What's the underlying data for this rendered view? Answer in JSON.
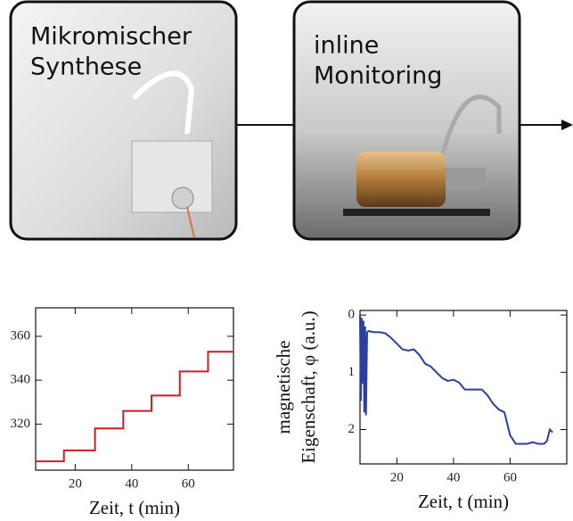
{
  "boxes": [
    {
      "label_lines": [
        "Mikromischer",
        "Synthese"
      ]
    },
    {
      "label_lines": [
        "inline",
        "Monitoring"
      ]
    }
  ],
  "chart_data": [
    {
      "type": "line",
      "x": [
        6,
        16,
        16,
        27,
        27,
        37,
        37,
        47,
        47,
        57,
        57,
        67,
        67,
        76
      ],
      "series": [
        {
          "color": "#cc1f1f",
          "values": [
            303,
            303,
            308,
            308,
            318,
            318,
            326,
            326,
            333,
            333,
            344,
            344,
            353,
            353
          ]
        }
      ],
      "xlim": [
        6,
        76
      ],
      "ylim": [
        299,
        373
      ],
      "xticks": [
        20,
        40,
        60
      ],
      "yticks": [
        320,
        340,
        360
      ],
      "xlabel": "Zeit, t (min)",
      "y_inverted": false
    },
    {
      "type": "line",
      "x": [
        7,
        7.3,
        7.6,
        7.9,
        8.2,
        8.5,
        8.8,
        9.1,
        9.5,
        10,
        12,
        14,
        16,
        18,
        20,
        22,
        24,
        26,
        28,
        30,
        32,
        34,
        36,
        38,
        40,
        42,
        44,
        46,
        48,
        50,
        52,
        54,
        56,
        58,
        60,
        62,
        64,
        66,
        68,
        70,
        72,
        73,
        74,
        75
      ],
      "series": [
        {
          "color": "#2a3fa0",
          "values": [
            0,
            1.5,
            0.05,
            1.2,
            0.1,
            1.7,
            0.2,
            1.75,
            0.3,
            0.28,
            0.3,
            0.3,
            0.32,
            0.4,
            0.5,
            0.6,
            0.62,
            0.6,
            0.7,
            0.85,
            0.9,
            1.0,
            1.1,
            1.15,
            1.13,
            1.18,
            1.3,
            1.3,
            1.3,
            1.3,
            1.4,
            1.55,
            1.65,
            1.7,
            2.1,
            2.25,
            2.25,
            2.25,
            2.22,
            2.25,
            2.25,
            2.2,
            2.0,
            2.05
          ]
        }
      ],
      "xlim": [
        7,
        80
      ],
      "ylim": [
        -0.08,
        2.6
      ],
      "xticks": [
        20,
        40,
        60
      ],
      "yticks": [
        0,
        1,
        2
      ],
      "xlabel": "Zeit, t (min)",
      "ylabel_lines": [
        "magnetische",
        "Eigenschaft, φ (a.u.)"
      ],
      "ylabel_color": "#2a3fa0",
      "y_inverted": true
    }
  ]
}
